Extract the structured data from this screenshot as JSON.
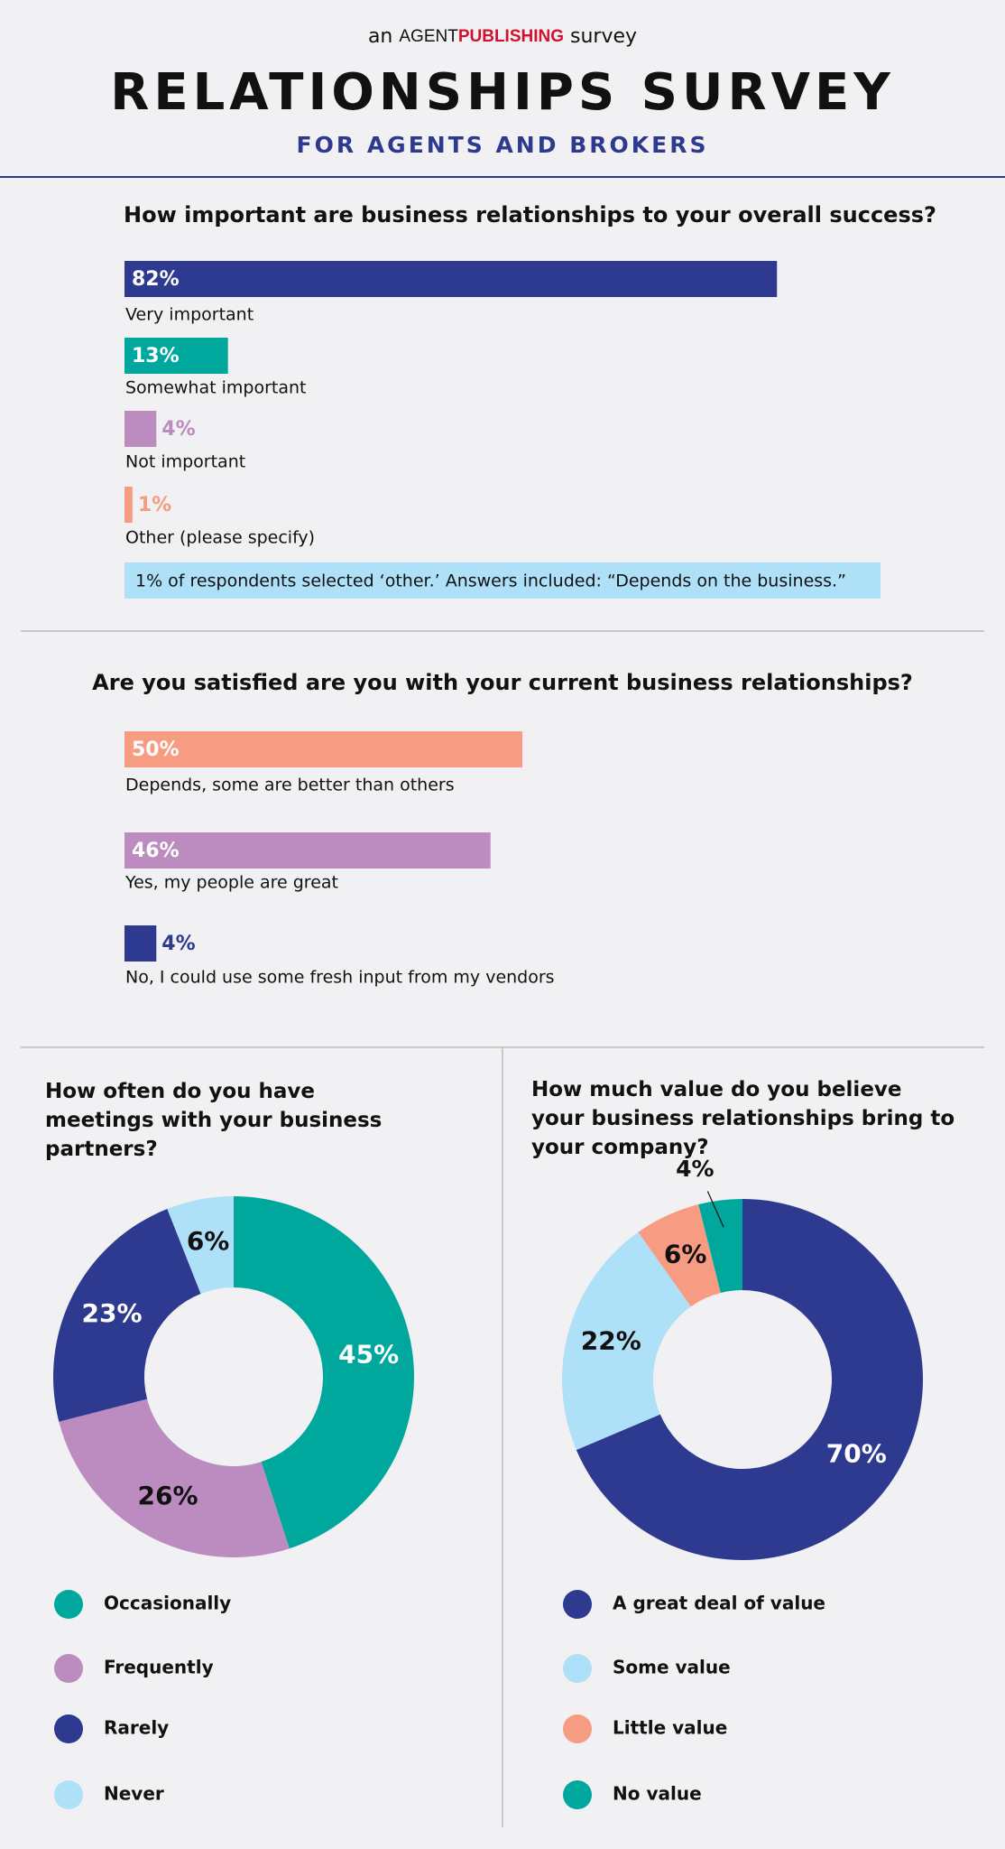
{
  "header": {
    "pre": "an",
    "brand_a": "AGENT",
    "brand_b": "PUBLISHING",
    "post": "survey",
    "title": "RELATIONSHIPS SURVEY",
    "subtitle": "FOR AGENTS AND BROKERS"
  },
  "chart_data": [
    {
      "type": "bar",
      "title": "How important are business relationships to your overall success?",
      "categories": [
        "Very important",
        "Somewhat important",
        "Not important",
        "Other (please specify)"
      ],
      "values": [
        82,
        13,
        4,
        1
      ],
      "value_labels": [
        "82%",
        "13%",
        "4%",
        "1%"
      ],
      "colors": [
        "#2e3a8f",
        "#00a79d",
        "#bc8cc0",
        "#f79b82"
      ],
      "annotation": "1% of respondents selected ‘other.’ Answers included: “Depends on the business.”"
    },
    {
      "type": "bar",
      "title": "Are you satisfied are you with your current business relationships?",
      "categories": [
        "Depends, some are better than others",
        "Yes, my people are great",
        "No, I could use some fresh input from my vendors"
      ],
      "values": [
        50,
        46,
        4
      ],
      "value_labels": [
        "50%",
        "46%",
        "4%"
      ],
      "colors": [
        "#f79b82",
        "#bc8cc0",
        "#2e3a8f"
      ]
    },
    {
      "type": "donut",
      "title": "How often do you have meetings with your business partners?",
      "categories": [
        "Occasionally",
        "Frequently",
        "Rarely",
        "Never"
      ],
      "values": [
        45,
        26,
        23,
        6
      ],
      "value_labels": [
        "45%",
        "26%",
        "23%",
        "6%"
      ],
      "colors": [
        "#00a79d",
        "#bc8cc0",
        "#2e3a8f",
        "#aee0f8"
      ]
    },
    {
      "type": "donut",
      "title": "How much value do you believe your business relationships bring to your company?",
      "categories": [
        "A great deal of value",
        "Some value",
        "Little value",
        "No value"
      ],
      "values": [
        70,
        22,
        6,
        4
      ],
      "value_labels": [
        "70%",
        "22%",
        "6%",
        "4%"
      ],
      "colors": [
        "#2e3a8f",
        "#aee0f8",
        "#f79b82",
        "#00a79d"
      ]
    }
  ]
}
